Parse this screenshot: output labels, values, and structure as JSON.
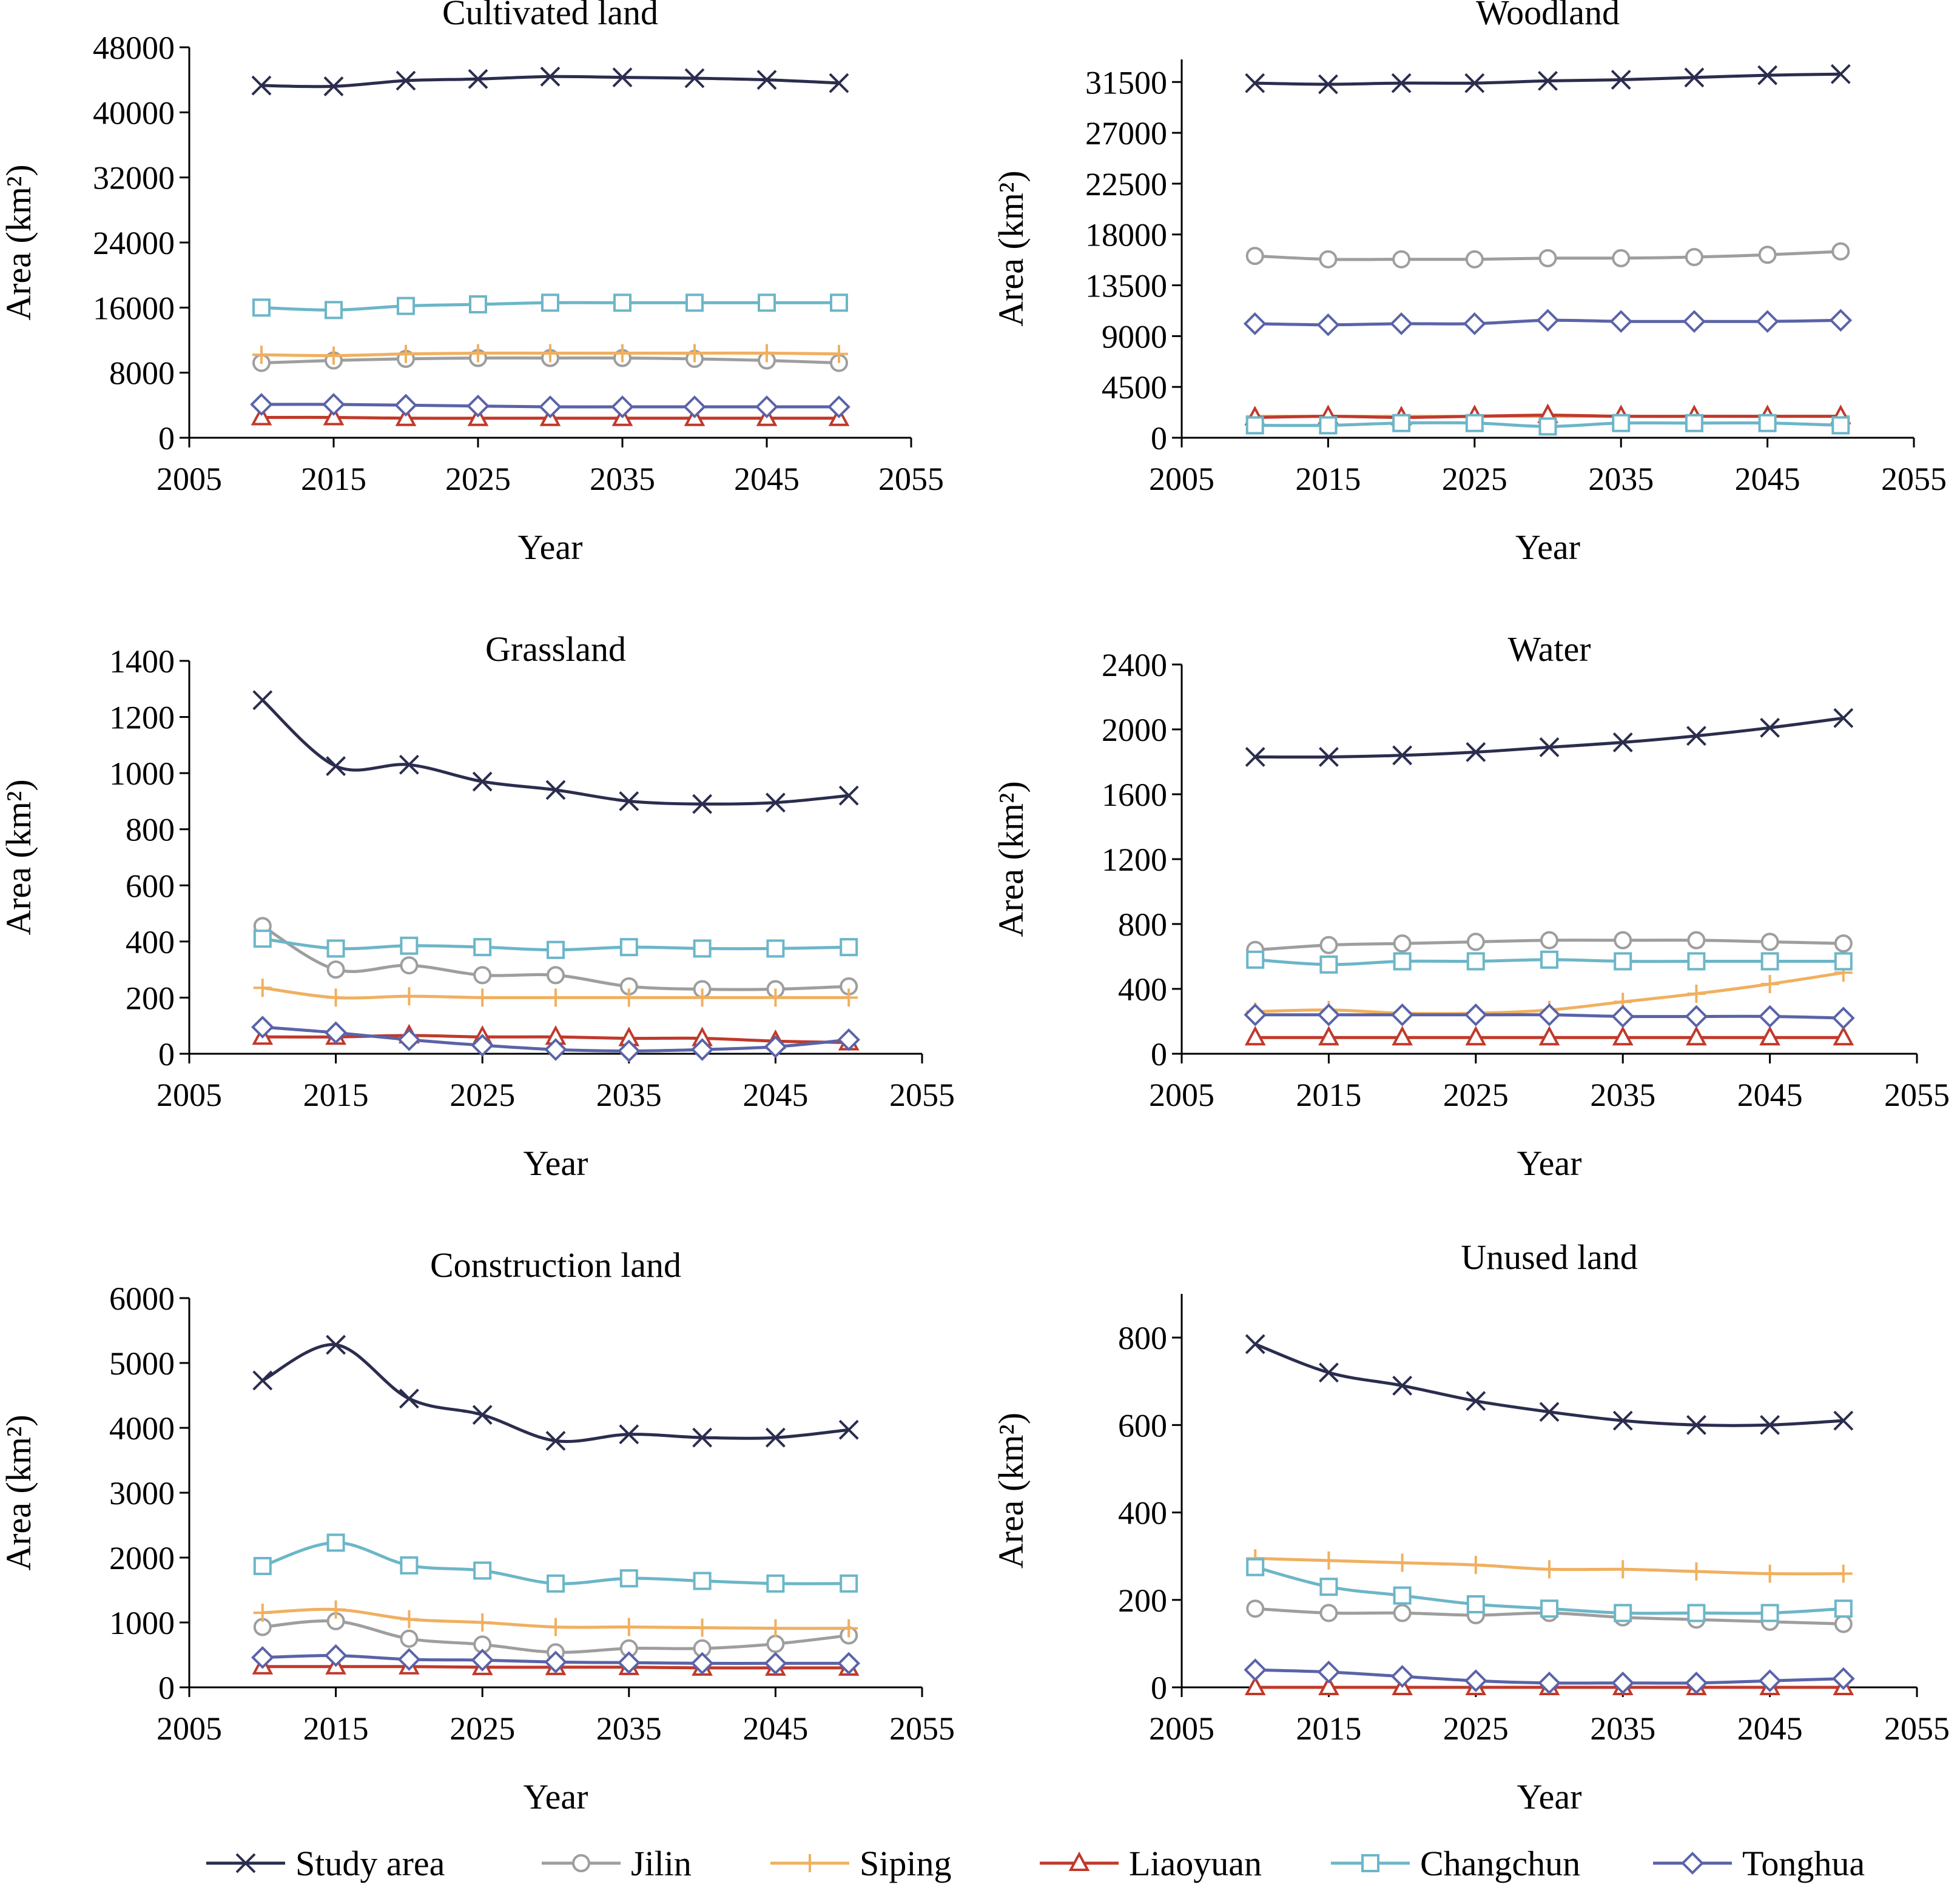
{
  "legend": {
    "entries": [
      "Study area",
      "Jilin",
      "Siping",
      "Liaoyuan",
      "Changchun",
      "Tonghua"
    ]
  },
  "series_style": [
    {
      "name": "Study area",
      "color": "#2b2d4e",
      "marker": "x"
    },
    {
      "name": "Jilin",
      "color": "#9e9e9e",
      "marker": "circle"
    },
    {
      "name": "Siping",
      "color": "#f0b060",
      "marker": "plus"
    },
    {
      "name": "Liaoyuan",
      "color": "#c0392b",
      "marker": "triangle"
    },
    {
      "name": "Changchun",
      "color": "#6cb6c8",
      "marker": "square"
    },
    {
      "name": "Tonghua",
      "color": "#5a63a8",
      "marker": "diamond"
    }
  ],
  "chart_data": [
    {
      "type": "line",
      "title": "Cultivated land",
      "xlabel": "Year",
      "ylabel": "Area (km²)",
      "xlim": [
        2005,
        2055
      ],
      "xticks": [
        2005,
        2015,
        2025,
        2035,
        2045,
        2055
      ],
      "ylim": [
        0,
        48000
      ],
      "yticks": [
        0,
        8000,
        16000,
        24000,
        32000,
        40000,
        48000
      ],
      "x": [
        2010,
        2015,
        2020,
        2025,
        2030,
        2035,
        2040,
        2045,
        2050
      ],
      "series": [
        {
          "name": "Study area",
          "values": [
            43300,
            43200,
            43900,
            44100,
            44400,
            44300,
            44200,
            44000,
            43600
          ]
        },
        {
          "name": "Jilin",
          "values": [
            9200,
            9500,
            9700,
            9800,
            9800,
            9800,
            9700,
            9500,
            9200
          ]
        },
        {
          "name": "Siping",
          "values": [
            10200,
            10100,
            10300,
            10400,
            10400,
            10400,
            10400,
            10400,
            10300
          ]
        },
        {
          "name": "Liaoyuan",
          "values": [
            2500,
            2500,
            2400,
            2400,
            2400,
            2400,
            2400,
            2400,
            2400
          ]
        },
        {
          "name": "Changchun",
          "values": [
            16000,
            15700,
            16200,
            16400,
            16600,
            16600,
            16600,
            16600,
            16600
          ]
        },
        {
          "name": "Tonghua",
          "values": [
            4100,
            4100,
            4000,
            3900,
            3800,
            3800,
            3800,
            3800,
            3800
          ]
        }
      ]
    },
    {
      "type": "line",
      "title": "Woodland",
      "xlabel": "Year",
      "ylabel": "Area (km²)",
      "xlim": [
        2005,
        2055
      ],
      "xticks": [
        2005,
        2015,
        2025,
        2035,
        2045,
        2055
      ],
      "ylim": [
        0,
        33500
      ],
      "yticks": [
        0,
        4500,
        9000,
        13500,
        18000,
        22500,
        27000,
        31500
      ],
      "x": [
        2010,
        2015,
        2020,
        2025,
        2030,
        2035,
        2040,
        2045,
        2050
      ],
      "series": [
        {
          "name": "Study area",
          "values": [
            31400,
            31300,
            31400,
            31400,
            31600,
            31700,
            31900,
            32100,
            32200
          ]
        },
        {
          "name": "Jilin",
          "values": [
            16100,
            15800,
            15800,
            15800,
            15900,
            15900,
            16000,
            16200,
            16500
          ]
        },
        {
          "name": "Siping",
          "values": [
            1900,
            1900,
            1900,
            1900,
            1900,
            1900,
            1900,
            1900,
            1900
          ]
        },
        {
          "name": "Liaoyuan",
          "values": [
            1800,
            1900,
            1800,
            1900,
            2000,
            1900,
            1900,
            1900,
            1900
          ]
        },
        {
          "name": "Changchun",
          "values": [
            1100,
            1100,
            1300,
            1300,
            1000,
            1300,
            1300,
            1300,
            1100
          ]
        },
        {
          "name": "Tonghua",
          "values": [
            10100,
            10000,
            10100,
            10100,
            10400,
            10300,
            10300,
            10300,
            10400
          ]
        }
      ]
    },
    {
      "type": "line",
      "title": "Grassland",
      "xlabel": "Year",
      "ylabel": "Area (km²)",
      "xlim": [
        2005,
        2055
      ],
      "xticks": [
        2005,
        2015,
        2025,
        2035,
        2045,
        2055
      ],
      "ylim": [
        0,
        1400
      ],
      "yticks": [
        0,
        200,
        400,
        600,
        800,
        1000,
        1200,
        1400
      ],
      "x": [
        2010,
        2015,
        2020,
        2025,
        2030,
        2035,
        2040,
        2045,
        2050
      ],
      "series": [
        {
          "name": "Study area",
          "values": [
            1260,
            1025,
            1030,
            970,
            940,
            900,
            890,
            895,
            920
          ]
        },
        {
          "name": "Jilin",
          "values": [
            455,
            300,
            315,
            280,
            280,
            240,
            230,
            230,
            240
          ]
        },
        {
          "name": "Siping",
          "values": [
            235,
            200,
            205,
            200,
            200,
            200,
            200,
            200,
            200
          ]
        },
        {
          "name": "Liaoyuan",
          "values": [
            60,
            60,
            65,
            60,
            60,
            55,
            55,
            45,
            40
          ]
        },
        {
          "name": "Changchun",
          "values": [
            410,
            375,
            385,
            380,
            370,
            380,
            375,
            375,
            380
          ]
        },
        {
          "name": "Tonghua",
          "values": [
            95,
            75,
            50,
            30,
            15,
            10,
            15,
            25,
            50
          ]
        }
      ]
    },
    {
      "type": "line",
      "title": "Water",
      "xlabel": "Year",
      "ylabel": "Area (km²)",
      "xlim": [
        2005,
        2055
      ],
      "xticks": [
        2005,
        2015,
        2025,
        2035,
        2045,
        2055
      ],
      "ylim": [
        0,
        2400
      ],
      "yticks": [
        0,
        400,
        800,
        1200,
        1600,
        2000,
        2400
      ],
      "x": [
        2010,
        2015,
        2020,
        2025,
        2030,
        2035,
        2040,
        2045,
        2050
      ],
      "series": [
        {
          "name": "Study area",
          "values": [
            1830,
            1830,
            1840,
            1860,
            1890,
            1920,
            1960,
            2010,
            2070
          ]
        },
        {
          "name": "Jilin",
          "values": [
            640,
            670,
            680,
            690,
            700,
            700,
            700,
            690,
            680
          ]
        },
        {
          "name": "Siping",
          "values": [
            260,
            270,
            250,
            250,
            270,
            320,
            370,
            430,
            500
          ]
        },
        {
          "name": "Liaoyuan",
          "values": [
            100,
            100,
            100,
            100,
            100,
            100,
            100,
            100,
            100
          ]
        },
        {
          "name": "Changchun",
          "values": [
            580,
            550,
            570,
            570,
            580,
            570,
            570,
            570,
            570
          ]
        },
        {
          "name": "Tonghua",
          "values": [
            240,
            240,
            240,
            240,
            240,
            230,
            230,
            230,
            220
          ]
        }
      ]
    },
    {
      "type": "line",
      "title": "Construction land",
      "xlabel": "Year",
      "ylabel": "Area (km²)",
      "xlim": [
        2005,
        2055
      ],
      "xticks": [
        2005,
        2015,
        2025,
        2035,
        2045,
        2055
      ],
      "ylim": [
        0,
        6000
      ],
      "yticks": [
        0,
        1000,
        2000,
        3000,
        4000,
        5000,
        6000
      ],
      "x": [
        2010,
        2015,
        2020,
        2025,
        2030,
        2035,
        2040,
        2045,
        2050
      ],
      "series": [
        {
          "name": "Study area",
          "values": [
            4730,
            5280,
            4450,
            4200,
            3800,
            3900,
            3850,
            3850,
            3970
          ]
        },
        {
          "name": "Jilin",
          "values": [
            930,
            1020,
            750,
            660,
            540,
            600,
            600,
            670,
            800
          ]
        },
        {
          "name": "Siping",
          "values": [
            1150,
            1200,
            1050,
            1000,
            930,
            930,
            920,
            910,
            910
          ]
        },
        {
          "name": "Liaoyuan",
          "values": [
            320,
            320,
            320,
            310,
            310,
            310,
            300,
            300,
            300
          ]
        },
        {
          "name": "Changchun",
          "values": [
            1870,
            2230,
            1880,
            1800,
            1600,
            1680,
            1640,
            1600,
            1600
          ]
        },
        {
          "name": "Tonghua",
          "values": [
            460,
            490,
            430,
            420,
            390,
            380,
            370,
            370,
            370
          ]
        }
      ]
    },
    {
      "type": "line",
      "title": "Unused land",
      "xlabel": "Year",
      "ylabel": "Area (km²)",
      "xlim": [
        2005,
        2055
      ],
      "xticks": [
        2005,
        2015,
        2025,
        2035,
        2045,
        2055
      ],
      "ylim": [
        0,
        900
      ],
      "yticks": [
        0,
        200,
        400,
        600,
        800
      ],
      "x": [
        2010,
        2015,
        2020,
        2025,
        2030,
        2035,
        2040,
        2045,
        2050
      ],
      "series": [
        {
          "name": "Study area",
          "values": [
            785,
            720,
            690,
            655,
            630,
            610,
            600,
            600,
            610
          ]
        },
        {
          "name": "Jilin",
          "values": [
            180,
            170,
            170,
            165,
            170,
            160,
            155,
            150,
            145
          ]
        },
        {
          "name": "Siping",
          "values": [
            295,
            290,
            285,
            280,
            270,
            270,
            265,
            260,
            260
          ]
        },
        {
          "name": "Liaoyuan",
          "values": [
            0,
            0,
            0,
            0,
            0,
            0,
            0,
            0,
            0
          ]
        },
        {
          "name": "Changchun",
          "values": [
            275,
            230,
            210,
            190,
            180,
            170,
            170,
            170,
            180
          ]
        },
        {
          "name": "Tonghua",
          "values": [
            40,
            35,
            25,
            15,
            10,
            10,
            10,
            15,
            20
          ]
        }
      ]
    }
  ]
}
